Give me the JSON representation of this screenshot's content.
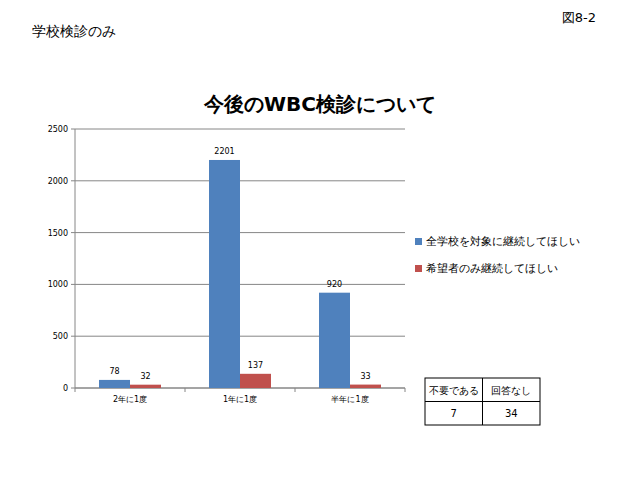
{
  "page": {
    "note": "学校検診のみ",
    "figure": "図8-2"
  },
  "chart_data": {
    "type": "bar",
    "title": "今後のWBC検診について",
    "categories": [
      "2年に1度",
      "1年に1度",
      "半年に1度"
    ],
    "series": [
      {
        "name": "全学校を対象に継続してほしい",
        "color": "#4f81bd",
        "values": [
          78,
          2201,
          920
        ]
      },
      {
        "name": "希望者のみ継続してほしい",
        "color": "#c0504d",
        "values": [
          32,
          137,
          33
        ]
      }
    ],
    "ylim": [
      0,
      2500
    ],
    "yticks": [
      0,
      500,
      1000,
      1500,
      2000,
      2500
    ],
    "grid": true,
    "legend": "right",
    "data_labels": true
  },
  "table": {
    "columns": [
      "不要である",
      "回答なし"
    ],
    "rows": [
      [
        7,
        34
      ]
    ]
  }
}
